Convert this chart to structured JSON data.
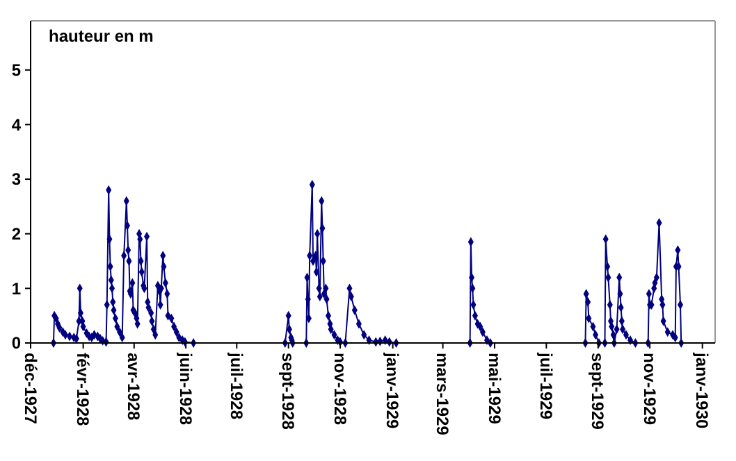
{
  "chart_data": {
    "type": "line",
    "ylabel": "hauteur en m",
    "marker": "diamond",
    "line_style": "solid",
    "grid": false,
    "xlim": [
      "1927-12-01",
      "1930-02-15"
    ],
    "ylim": [
      0,
      5.9
    ],
    "yticks": [
      0,
      1,
      2,
      3,
      4,
      5
    ],
    "xticks": [
      {
        "value": "1927-12-01",
        "label": "déc-1927"
      },
      {
        "value": "1928-02-01",
        "label": "févr-1928"
      },
      {
        "value": "1928-04-01",
        "label": "avr-1928"
      },
      {
        "value": "1928-06-01",
        "label": "juin-1928"
      },
      {
        "value": "1928-07-31",
        "label": "juil-1928"
      },
      {
        "value": "1928-09-30",
        "label": "sept-1928"
      },
      {
        "value": "1928-11-30",
        "label": "nov-1928"
      },
      {
        "value": "1929-01-31",
        "label": "janv-1929"
      },
      {
        "value": "1929-03-31",
        "label": "mars-1929"
      },
      {
        "value": "1929-05-31",
        "label": "mai-1929"
      },
      {
        "value": "1929-07-31",
        "label": "juil-1929"
      },
      {
        "value": "1929-09-30",
        "label": "sept-1929"
      },
      {
        "value": "1929-11-30",
        "label": "nov-1929"
      },
      {
        "value": "1930-01-31",
        "label": "janv-1930"
      }
    ],
    "series": [
      {
        "color": "#000080",
        "x": [
          "1927-12-28",
          "1927-12-29",
          "1927-12-31",
          "1928-01-02",
          "1928-01-04",
          "1928-01-08",
          "1928-01-11",
          "1928-01-16",
          "1928-01-21",
          "1928-01-24",
          "1928-01-27",
          "1928-01-28",
          "1928-01-29",
          "1928-01-31",
          "1928-02-01",
          "1928-02-05",
          "1928-02-08",
          "1928-02-11",
          "1928-02-14",
          "1928-02-18",
          "1928-02-21",
          "1928-02-24",
          "1928-02-28",
          "1928-02-29",
          "1928-03-02",
          "1928-03-03",
          "1928-03-04",
          "1928-03-05",
          "1928-03-06",
          "1928-03-07",
          "1928-03-08",
          "1928-03-10",
          "1928-03-12",
          "1928-03-15",
          "1928-03-18",
          "1928-03-20",
          "1928-03-23",
          "1928-03-24",
          "1928-03-25",
          "1928-03-26",
          "1928-03-27",
          "1928-03-28",
          "1928-03-30",
          "1928-03-31",
          "1928-04-02",
          "1928-04-04",
          "1928-04-05",
          "1928-04-07",
          "1928-04-08",
          "1928-04-09",
          "1928-04-10",
          "1928-04-12",
          "1928-04-13",
          "1928-04-16",
          "1928-04-17",
          "1928-04-18",
          "1928-04-21",
          "1928-04-22",
          "1928-04-24",
          "1928-04-26",
          "1928-04-29",
          "1928-05-01",
          "1928-05-02",
          "1928-05-03",
          "1928-05-05",
          "1928-05-06",
          "1928-05-08",
          "1928-05-10",
          "1928-05-11",
          "1928-05-15",
          "1928-05-18",
          "1928-05-21",
          "1928-05-24",
          "1928-05-28",
          "1928-05-31",
          "1928-06-10",
          "1928-08-15",
          "1928-09-26",
          "1928-09-30",
          "1928-10-01",
          "1928-10-03",
          "1928-10-04",
          "1928-10-05",
          "1928-10-21",
          "1928-10-22",
          "1928-10-23",
          "1928-10-24",
          "1928-10-25",
          "1928-10-28",
          "1928-10-29",
          "1928-11-01",
          "1928-11-02",
          "1928-11-03",
          "1928-11-05",
          "1928-11-06",
          "1928-11-08",
          "1928-11-09",
          "1928-11-10",
          "1928-11-11",
          "1928-11-13",
          "1928-11-14",
          "1928-11-16",
          "1928-11-18",
          "1928-11-19",
          "1928-11-23",
          "1928-11-27",
          "1928-11-30",
          "1928-12-06",
          "1928-12-11",
          "1928-12-13",
          "1928-12-17",
          "1928-12-22",
          "1928-12-28",
          "1929-01-03",
          "1929-01-11",
          "1929-01-16",
          "1929-01-22",
          "1929-01-27",
          "1929-02-04",
          "1929-03-15",
          "1929-05-02",
          "1929-05-03",
          "1929-05-04",
          "1929-05-05",
          "1929-05-06",
          "1929-05-08",
          "1929-05-11",
          "1929-05-14",
          "1929-05-17",
          "1929-05-22",
          "1929-05-26",
          "1929-07-20",
          "1929-09-15",
          "1929-09-16",
          "1929-09-18",
          "1929-09-19",
          "1929-09-24",
          "1929-09-27",
          "1929-10-01",
          "1929-10-08",
          "1929-10-09",
          "1929-10-11",
          "1929-10-12",
          "1929-10-14",
          "1929-10-15",
          "1929-10-16",
          "1929-10-18",
          "1929-10-19",
          "1929-10-22",
          "1929-10-25",
          "1929-10-26",
          "1929-10-27",
          "1929-10-28",
          "1929-10-29",
          "1929-11-02",
          "1929-11-07",
          "1929-11-13",
          "1929-11-20",
          "1929-11-28",
          "1929-11-29",
          "1929-11-30",
          "1929-12-02",
          "1929-12-05",
          "1929-12-06",
          "1929-12-08",
          "1929-12-11",
          "1929-12-14",
          "1929-12-15",
          "1929-12-16",
          "1929-12-21",
          "1929-12-27",
          "1929-12-30",
          "1929-12-31",
          "1930-01-02",
          "1930-01-03",
          "1930-01-05",
          "1930-01-06"
        ],
        "values": [
          0,
          0.5,
          0.45,
          0.35,
          0.28,
          0.2,
          0.15,
          0.12,
          0.1,
          0.08,
          0.4,
          1.0,
          0.55,
          0.4,
          0.3,
          0.18,
          0.12,
          0.1,
          0.15,
          0.12,
          0.08,
          0.04,
          0.02,
          0.7,
          2.8,
          1.9,
          1.4,
          1.15,
          1.0,
          0.75,
          0.6,
          0.45,
          0.3,
          0.2,
          0.1,
          1.6,
          2.6,
          2.15,
          1.7,
          1.5,
          0.95,
          0.9,
          1.1,
          0.6,
          0.55,
          0.45,
          0.35,
          2.0,
          1.9,
          1.5,
          1.3,
          1.05,
          1.0,
          1.95,
          0.75,
          0.65,
          0.55,
          0.4,
          0.25,
          0.15,
          1.05,
          0.95,
          0.7,
          1.0,
          1.6,
          1.4,
          1.1,
          0.9,
          0.5,
          0.45,
          0.3,
          0.2,
          0.1,
          0.05,
          0.02,
          0,
          null,
          0,
          0.5,
          0.25,
          0.1,
          0.05,
          0,
          0,
          1.2,
          0.8,
          0.45,
          1.6,
          2.9,
          1.5,
          1.6,
          1.3,
          2.0,
          1.0,
          0.85,
          2.6,
          2.1,
          1.5,
          0.9,
          1.0,
          0.8,
          0.5,
          0.35,
          0.25,
          0.15,
          0.05,
          0.02,
          0,
          1.0,
          0.85,
          0.6,
          0.35,
          0.15,
          0.05,
          0.02,
          0.03,
          0.05,
          0.02,
          0,
          null,
          0,
          1.85,
          1.2,
          1.0,
          0.7,
          0.5,
          0.35,
          0.3,
          0.2,
          0.05,
          0,
          null,
          0,
          0.9,
          0.75,
          0.45,
          0.3,
          0.15,
          0,
          0,
          1.9,
          1.4,
          1.2,
          0.7,
          0.4,
          0.3,
          0.15,
          0,
          0.25,
          1.2,
          0.9,
          0.65,
          0.4,
          0.25,
          0.15,
          0.05,
          0,
          null,
          0,
          0.9,
          0.7,
          0.7,
          1.0,
          1.1,
          1.2,
          2.2,
          0.8,
          0.7,
          0.4,
          0.2,
          0.15,
          0.1,
          1.4,
          1.7,
          1.4,
          0.7,
          0
        ]
      }
    ]
  }
}
